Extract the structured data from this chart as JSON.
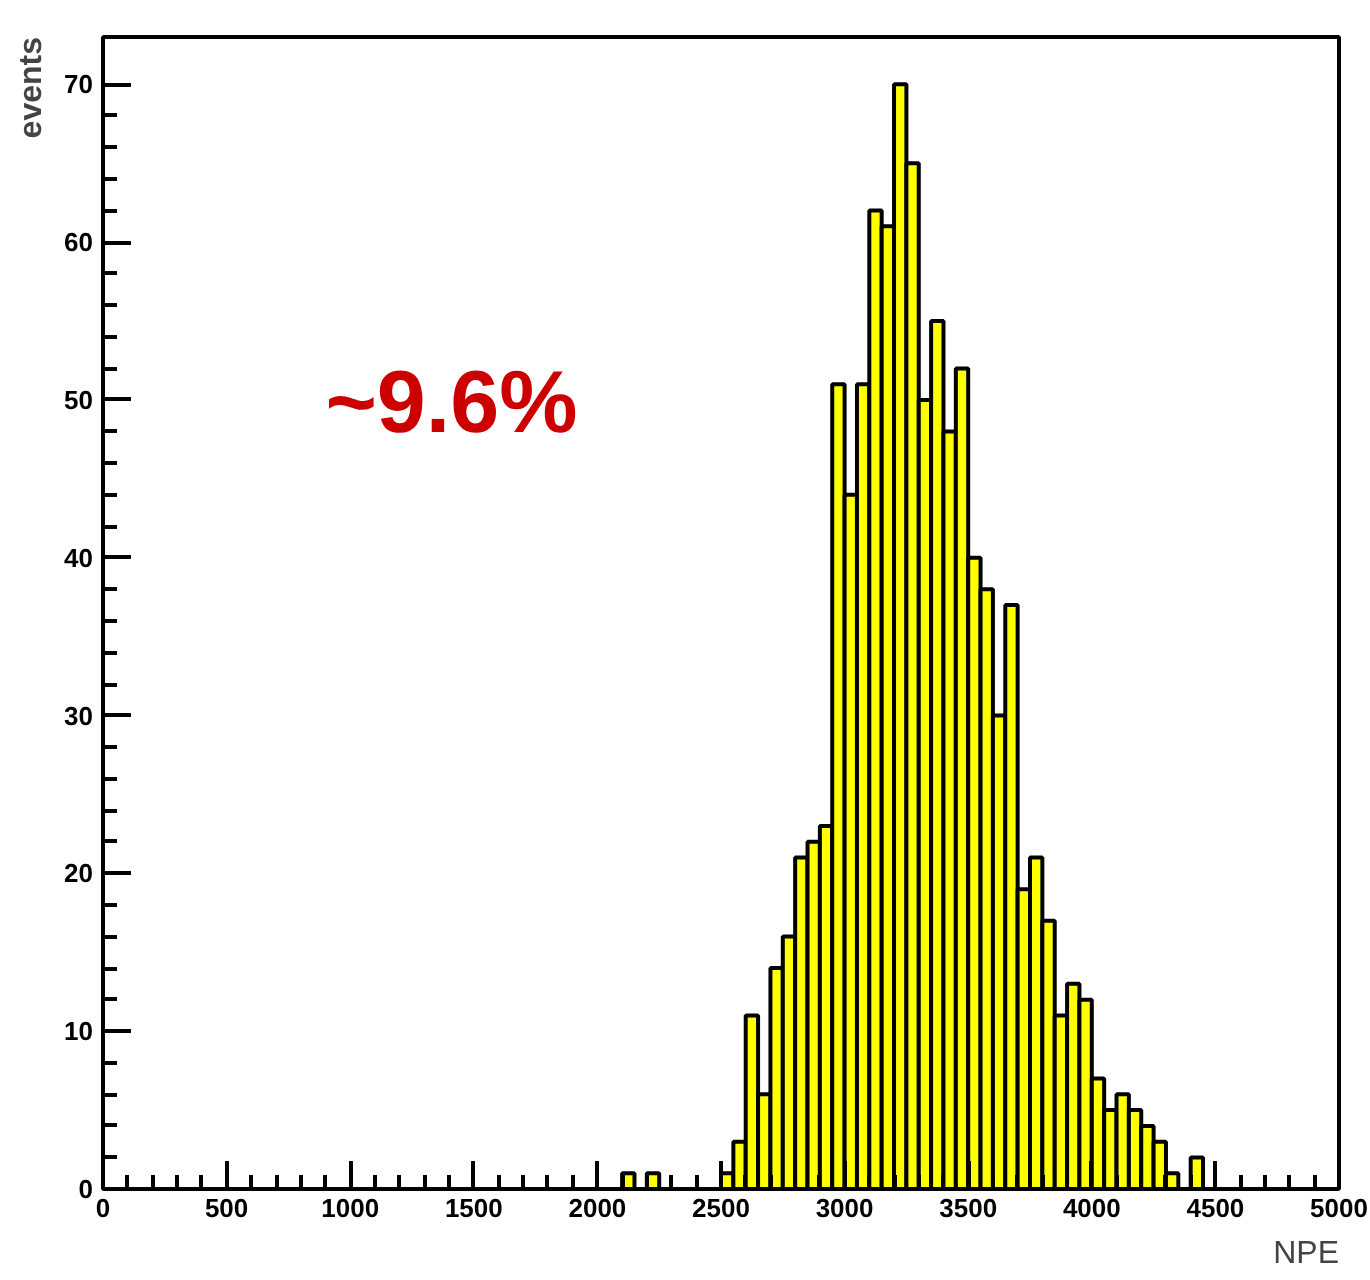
{
  "chart_data": {
    "type": "histogram",
    "xlabel": "NPE",
    "ylabel": "events",
    "annotations": [
      "~9.6%"
    ],
    "bins": [
      2100,
      2150,
      2200,
      2250,
      2300,
      2350,
      2400,
      2450,
      2500,
      2550,
      2600,
      2650,
      2700,
      2750,
      2800,
      2850,
      2900,
      2950,
      3000,
      3050,
      3100,
      3150,
      3200,
      3250,
      3300,
      3350,
      3400,
      3450,
      3500,
      3550,
      3600,
      3650,
      3700,
      3750,
      3800,
      3850,
      3900,
      3950,
      4000,
      4050,
      4100,
      4150,
      4200,
      4250,
      4300,
      4350,
      4400,
      4450
    ],
    "values": [
      1,
      0,
      1,
      0,
      0,
      0,
      0,
      0,
      1,
      3,
      11,
      6,
      14,
      16,
      21,
      22,
      23,
      51,
      44,
      51,
      62,
      61,
      70,
      65,
      50,
      55,
      48,
      52,
      40,
      38,
      30,
      37,
      19,
      21,
      17,
      11,
      13,
      12,
      7,
      5,
      6,
      5,
      4,
      3,
      1,
      0,
      2
    ],
    "color": "#ffff00",
    "xlim": [
      0,
      5000
    ],
    "ylim": [
      0,
      73
    ],
    "xticks": [
      0,
      500,
      1000,
      1500,
      2000,
      2500,
      3000,
      3500,
      4000,
      4500,
      5000
    ],
    "yticks": [
      0,
      10,
      20,
      30,
      40,
      50,
      60,
      70
    ],
    "grid": false
  }
}
